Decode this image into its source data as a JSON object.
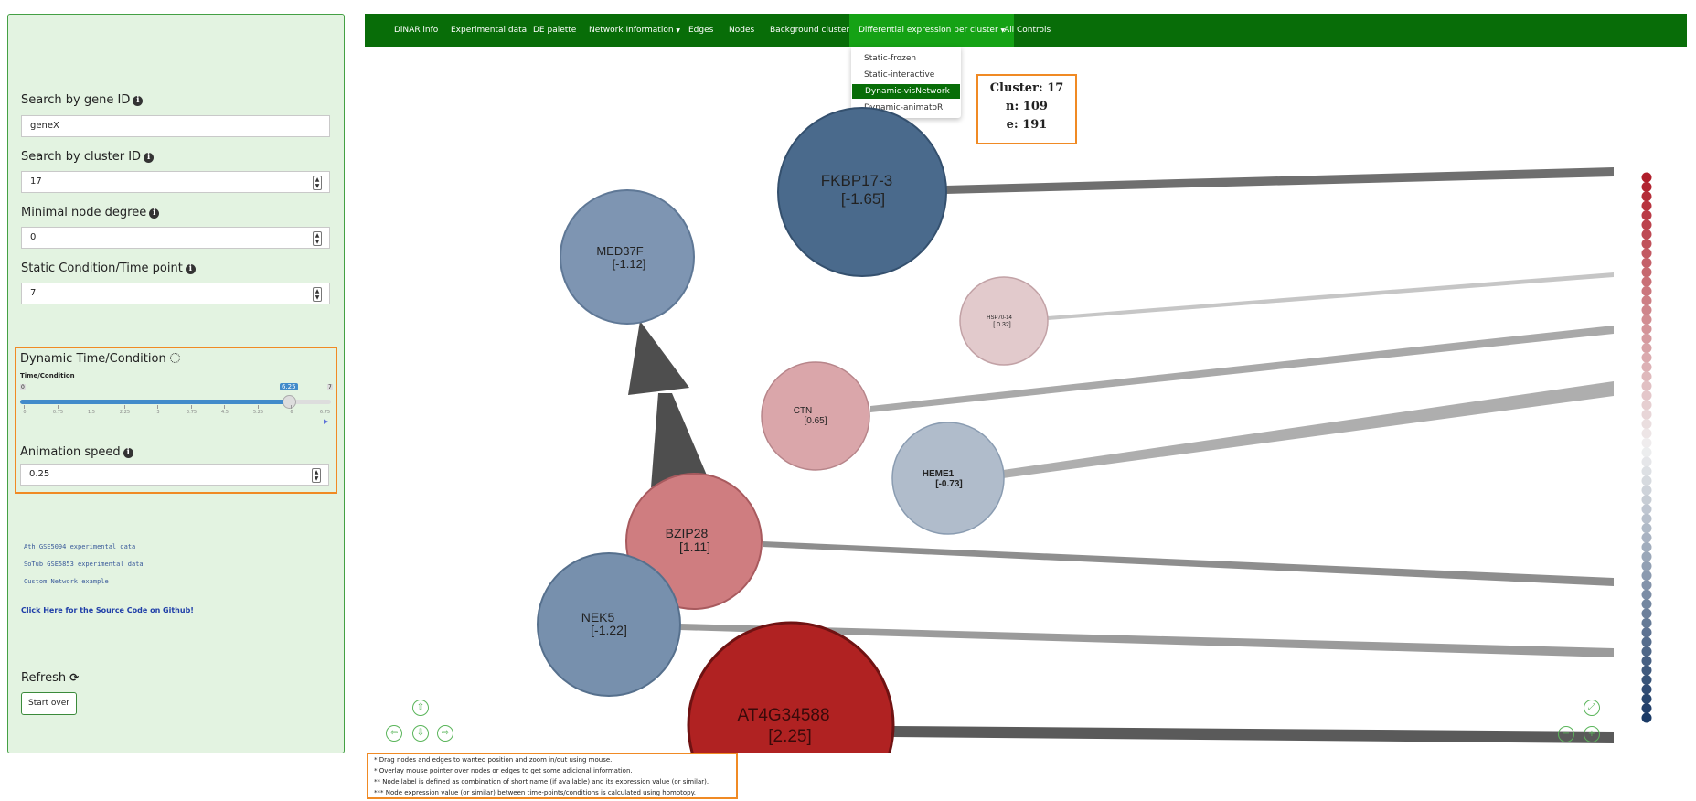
{
  "sidebar": {
    "search_gene_label": "Search by gene ID",
    "search_gene_value": "geneX",
    "search_cluster_label": "Search by cluster ID",
    "search_cluster_value": "17",
    "min_degree_label": "Minimal node degree",
    "min_degree_value": "0",
    "static_time_label": "Static Condition/Time point",
    "static_time_value": "7",
    "dynamic_label": "Dynamic Time/Condition",
    "slider": {
      "title": "Time/Condition",
      "min": "0",
      "max": "7",
      "value": "6.25",
      "ticks": [
        "0",
        "0.75",
        "1.5",
        "2.25",
        "3",
        "3.75",
        "4.5",
        "5.25",
        "6",
        "6.75"
      ]
    },
    "anim_speed_label": "Animation speed",
    "anim_speed_value": "0.25",
    "examples": [
      "Ath GSE5094 experimental data",
      "SoTub GSE5853 experimental data",
      "Custom Network example"
    ],
    "source_link": "Click Here for the Source Code on Github!",
    "refresh_label": "Refresh",
    "start_over": "Start over"
  },
  "navbar": {
    "items": [
      "DiNAR info",
      "Experimental data",
      "DE palette",
      "Network Information",
      "Edges",
      "Nodes",
      "Background clusters",
      "Differential expression per cluster",
      "All Controls"
    ],
    "dropdown": [
      "Static-frozen",
      "Static-interactive",
      "Dynamic-visNetwork",
      "Dynamic-animatoR"
    ],
    "selected_dropdown": "Dynamic-visNetwork"
  },
  "cluster_info": {
    "cluster": "Cluster: 17",
    "nodes": "n: 109",
    "edges": "e: 191"
  },
  "network": {
    "nodes": [
      {
        "name": "FKBP17-3",
        "value": "[-1.65]",
        "color": "#4a6a8c"
      },
      {
        "name": "MED37F",
        "value": "[-1.12]",
        "color": "#7e95b2"
      },
      {
        "name": "HSP70-14",
        "value": "[ 0.32]",
        "color": "#e2cacc"
      },
      {
        "name": "CTN",
        "value": "[0.65]",
        "color": "#daa6aa"
      },
      {
        "name": "HEME1",
        "value": "[-0.73]",
        "color": "#b0bccb"
      },
      {
        "name": "BZIP28",
        "value": "[1.11]",
        "color": "#cf7d80"
      },
      {
        "name": "NEK5",
        "value": "[-1.22]",
        "color": "#7790ad"
      },
      {
        "name": "AT4G34588",
        "value": "[2.25]",
        "color": "#b02222"
      }
    ]
  },
  "notes": [
    "* Drag nodes and edges to wanted position and zoom in/out using mouse.",
    "* Overlay mouse pointer over nodes or edges to get some adicional information.",
    "** Node label is defined as combination of short name (if available) and its expression value (or similar).",
    "*** Node expression value (or similar) between time-points/conditions is calculated using homotopy."
  ],
  "legend_colors": {
    "high": "#b01e2a",
    "mid": "#f0f0f0",
    "low": "#1a3a66"
  },
  "icons": {
    "info": "info-circle-icon",
    "loading": "spinner-icon",
    "refresh": "refresh-icon",
    "nav_up": "arrow-up-icon",
    "nav_down": "arrow-down-icon",
    "nav_left": "arrow-left-icon",
    "nav_right": "arrow-right-icon",
    "zoom_fit": "zoom-extent-icon",
    "zoom_in": "zoom-in-icon",
    "zoom_out": "zoom-out-icon"
  }
}
